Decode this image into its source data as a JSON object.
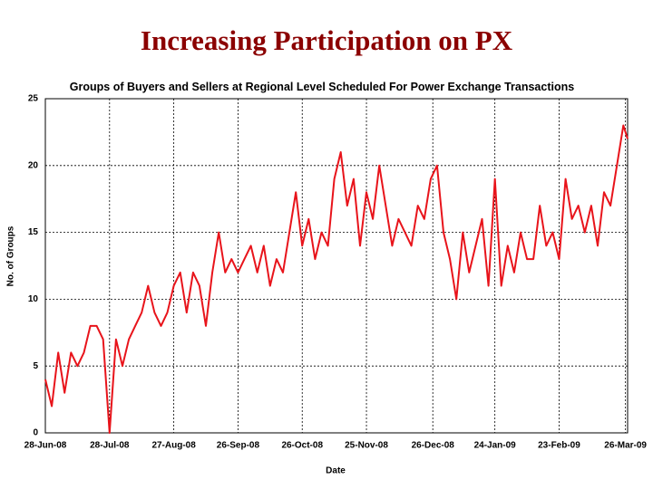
{
  "page_title": "Increasing Participation on PX",
  "chart_data": {
    "type": "line",
    "title": "Groups of Buyers and Sellers at Regional Level Scheduled For Power Exchange Transactions",
    "x_label": "Date",
    "y_label": "No. of Groups",
    "x": [
      "28-Jun-08",
      "1-Jul-08",
      "4-Jul-08",
      "7-Jul-08",
      "10-Jul-08",
      "13-Jul-08",
      "16-Jul-08",
      "19-Jul-08",
      "22-Jul-08",
      "25-Jul-08",
      "28-Jul-08",
      "31-Jul-08",
      "3-Aug-08",
      "6-Aug-08",
      "9-Aug-08",
      "12-Aug-08",
      "15-Aug-08",
      "18-Aug-08",
      "21-Aug-08",
      "24-Aug-08",
      "27-Aug-08",
      "30-Aug-08",
      "2-Sep-08",
      "5-Sep-08",
      "8-Sep-08",
      "11-Sep-08",
      "14-Sep-08",
      "17-Sep-08",
      "20-Sep-08",
      "23-Sep-08",
      "26-Sep-08",
      "29-Sep-08",
      "2-Oct-08",
      "5-Oct-08",
      "8-Oct-08",
      "11-Oct-08",
      "14-Oct-08",
      "17-Oct-08",
      "20-Oct-08",
      "23-Oct-08",
      "26-Oct-08",
      "29-Oct-08",
      "1-Nov-08",
      "4-Nov-08",
      "7-Nov-08",
      "10-Nov-08",
      "13-Nov-08",
      "16-Nov-08",
      "19-Nov-08",
      "22-Nov-08",
      "25-Nov-08",
      "28-Nov-08",
      "1-Dec-08",
      "4-Dec-08",
      "7-Dec-08",
      "10-Dec-08",
      "13-Dec-08",
      "16-Dec-08",
      "19-Dec-08",
      "22-Dec-08",
      "25-Dec-08",
      "28-Dec-08",
      "31-Dec-08",
      "3-Jan-09",
      "6-Jan-09",
      "9-Jan-09",
      "12-Jan-09",
      "15-Jan-09",
      "18-Jan-09",
      "21-Jan-09",
      "24-Jan-09",
      "27-Jan-09",
      "30-Jan-09",
      "2-Feb-09",
      "5-Feb-09",
      "8-Feb-09",
      "11-Feb-09",
      "14-Feb-09",
      "17-Feb-09",
      "20-Feb-09",
      "23-Feb-09",
      "26-Feb-09",
      "1-Mar-09",
      "4-Mar-09",
      "7-Mar-09",
      "10-Mar-09",
      "13-Mar-09",
      "16-Mar-09",
      "19-Mar-09",
      "22-Mar-09",
      "25-Mar-09",
      "27-Mar-09"
    ],
    "series": [
      {
        "color": "#e8141b",
        "values": [
          4,
          2,
          6,
          3,
          6,
          5,
          6,
          8,
          8,
          7,
          0,
          7,
          5,
          7,
          8,
          9,
          11,
          9,
          8,
          9,
          11,
          12,
          9,
          12,
          11,
          8,
          12,
          15,
          12,
          13,
          12,
          13,
          14,
          12,
          14,
          11,
          13,
          12,
          15,
          18,
          14,
          16,
          13,
          15,
          14,
          19,
          21,
          17,
          19,
          14,
          18,
          16,
          20,
          17,
          14,
          16,
          15,
          14,
          17,
          16,
          19,
          20,
          15,
          13,
          10,
          15,
          12,
          14,
          16,
          11,
          19,
          11,
          14,
          12,
          15,
          13,
          13,
          17,
          14,
          15,
          13,
          19,
          16,
          17,
          15,
          17,
          14,
          18,
          17,
          20,
          23,
          22
        ]
      }
    ],
    "xlim": [
      "28-Jun-08",
      "27-Mar-09"
    ],
    "xticks": [
      "28-Jun-08",
      "28-Jul-08",
      "27-Aug-08",
      "26-Sep-08",
      "26-Oct-08",
      "25-Nov-08",
      "26-Dec-08",
      "24-Jan-09",
      "23-Feb-09",
      "26-Mar-09"
    ],
    "ylim": [
      0,
      25
    ],
    "yticks": [
      0,
      5,
      10,
      15,
      20,
      25
    ],
    "grid": true
  }
}
